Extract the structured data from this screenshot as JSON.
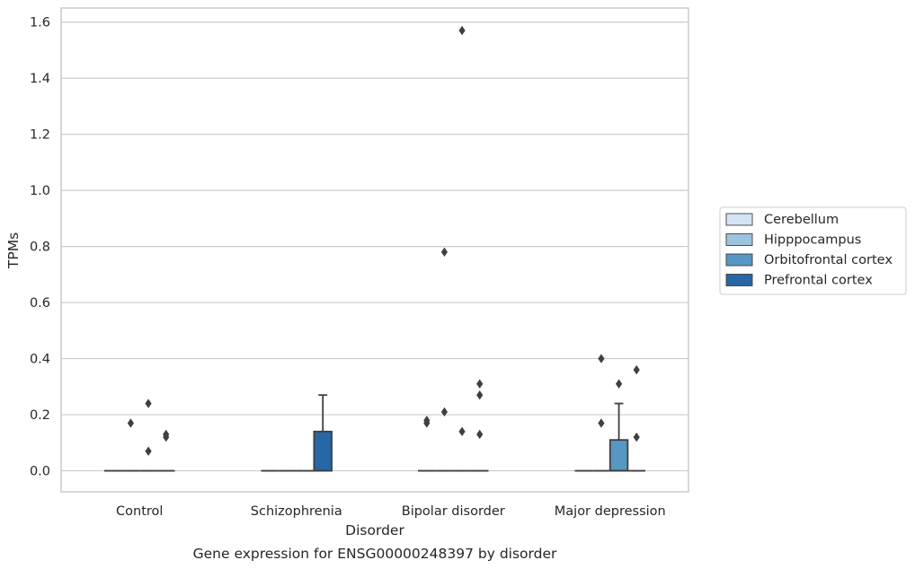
{
  "chart_data": {
    "type": "box",
    "title": "",
    "caption": "Gene expression for ENSG00000248397 by disorder",
    "xlabel": "Disorder",
    "ylabel": "TPMs",
    "ylim": [
      -0.075,
      1.65
    ],
    "yticks": [
      0.0,
      0.2,
      0.4,
      0.6,
      0.8,
      1.0,
      1.2,
      1.4,
      1.6
    ],
    "ytick_labels": [
      "0.0",
      "0.2",
      "0.4",
      "0.6",
      "0.8",
      "1.0",
      "1.2",
      "1.4",
      "1.6"
    ],
    "grid": true,
    "legend_position": "right",
    "categories": [
      "Control",
      "Schizophrenia",
      "Bipolar disorder",
      "Major depression"
    ],
    "series": [
      {
        "name": "Cerebellum",
        "color": "#d4e4f4",
        "boxes": [
          {
            "q1": 0,
            "median": 0,
            "q3": 0,
            "whisker_low": 0,
            "whisker_high": 0,
            "outliers": []
          },
          {
            "q1": 0,
            "median": 0,
            "q3": 0,
            "whisker_low": 0,
            "whisker_high": 0,
            "outliers": []
          },
          {
            "q1": 0,
            "median": 0,
            "q3": 0,
            "whisker_low": 0,
            "whisker_high": 0,
            "outliers": [
              0.17,
              0.18
            ]
          },
          {
            "q1": 0,
            "median": 0,
            "q3": 0,
            "whisker_low": 0,
            "whisker_high": 0,
            "outliers": []
          }
        ]
      },
      {
        "name": "Hipppocampus",
        "color": "#9dc3de",
        "boxes": [
          {
            "q1": 0,
            "median": 0,
            "q3": 0,
            "whisker_low": 0,
            "whisker_high": 0,
            "outliers": [
              0.17
            ]
          },
          {
            "q1": 0,
            "median": 0,
            "q3": 0,
            "whisker_low": 0,
            "whisker_high": 0,
            "outliers": []
          },
          {
            "q1": 0,
            "median": 0,
            "q3": 0,
            "whisker_low": 0,
            "whisker_high": 0,
            "outliers": [
              0.21,
              0.78
            ]
          },
          {
            "q1": 0,
            "median": 0,
            "q3": 0,
            "whisker_low": 0,
            "whisker_high": 0,
            "outliers": [
              0.4,
              0.17
            ]
          }
        ]
      },
      {
        "name": "Orbitofrontal cortex",
        "color": "#5797c3",
        "boxes": [
          {
            "q1": 0,
            "median": 0,
            "q3": 0,
            "whisker_low": 0,
            "whisker_high": 0,
            "outliers": [
              0.07,
              0.24
            ]
          },
          {
            "q1": 0,
            "median": 0,
            "q3": 0,
            "whisker_low": 0,
            "whisker_high": 0,
            "outliers": []
          },
          {
            "q1": 0,
            "median": 0,
            "q3": 0,
            "whisker_low": 0,
            "whisker_high": 0,
            "outliers": [
              0.14,
              1.57
            ]
          },
          {
            "q1": 0,
            "median": 0,
            "q3": 0.11,
            "whisker_low": 0,
            "whisker_high": 0.24,
            "outliers": [
              0.31
            ]
          }
        ]
      },
      {
        "name": "Prefrontal cortex",
        "color": "#2767a6",
        "boxes": [
          {
            "q1": 0,
            "median": 0,
            "q3": 0,
            "whisker_low": 0,
            "whisker_high": 0,
            "outliers": [
              0.12,
              0.13
            ]
          },
          {
            "q1": 0,
            "median": 0,
            "q3": 0.14,
            "whisker_low": 0,
            "whisker_high": 0.27,
            "outliers": []
          },
          {
            "q1": 0,
            "median": 0,
            "q3": 0,
            "whisker_low": 0,
            "whisker_high": 0,
            "outliers": [
              0.13,
              0.27,
              0.31
            ]
          },
          {
            "q1": 0,
            "median": 0,
            "q3": 0,
            "whisker_low": 0,
            "whisker_high": 0,
            "outliers": [
              0.12,
              0.36
            ]
          }
        ]
      }
    ]
  }
}
